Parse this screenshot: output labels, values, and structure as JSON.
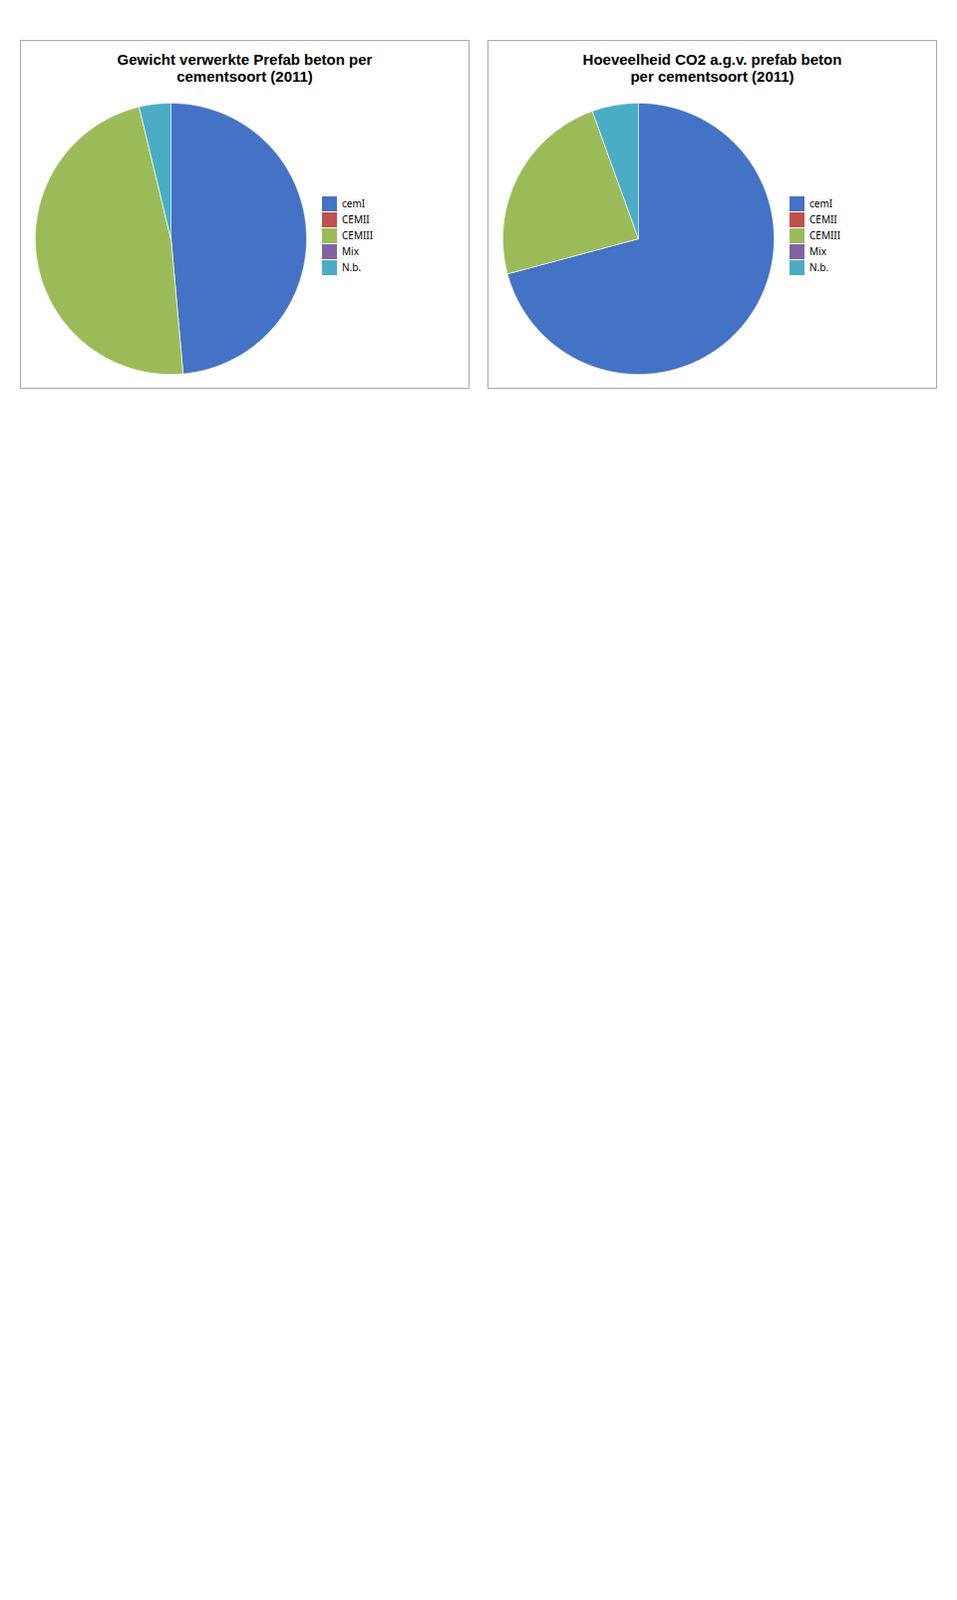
{
  "chart_data": [
    {
      "type": "pie",
      "title": "Gewicht verwerkte Prefab beton per\ncementsoort (2011)",
      "categories": [
        "cemI",
        "CEMII",
        "CEMIII",
        "Mix",
        "N.b."
      ],
      "values": [
        1354,
        0.001,
        1328,
        0.001,
        105
      ],
      "colors": [
        "#4472C4",
        "#C0504D",
        "#9BBB59",
        "#8064A2",
        "#4BACC6"
      ],
      "legend": "right"
    },
    {
      "type": "pie",
      "title": "Hoeveelheid CO2 a.g.v. prefab beton\nper cementsoort (2011)",
      "categories": [
        "cemI",
        "CEMII",
        "CEMIII",
        "Mix",
        "N.b."
      ],
      "values": [
        194659,
        0.001,
        64996,
        0.001,
        15160
      ],
      "colors": [
        "#4472C4",
        "#C0504D",
        "#9BBB59",
        "#8064A2",
        "#4BACC6"
      ],
      "legend": "right"
    }
  ]
}
